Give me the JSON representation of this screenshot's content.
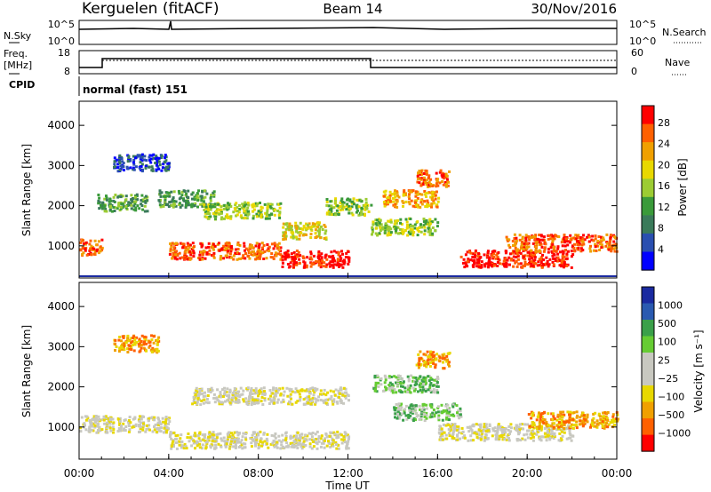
{
  "header": {
    "station": "Kerguelen (fitACF)",
    "beam": "Beam 14",
    "date": "30/Nov/2016"
  },
  "strips": {
    "nsky_label": "N.Sky",
    "nsearch_label": "N.Search",
    "nsky_ticks": [
      "10^5",
      "10^0"
    ],
    "nsky_right_ticks": [
      "10^5",
      "10^0"
    ],
    "freq_label": "Freq.",
    "freq_unit": "[MHz]",
    "freq_ticks": [
      "18",
      "8"
    ],
    "nave_label": "Nave",
    "nave_ticks": [
      "60",
      "0"
    ],
    "cpid_label": "CPID",
    "cpid_value": "normal (fast) 151"
  },
  "colors": {
    "power_scale": [
      "#0000ff",
      "#2a4fb0",
      "#3a7a5a",
      "#3a9a3a",
      "#9ccc33",
      "#e8d800",
      "#f0a000",
      "#ff6000",
      "#ff0000"
    ],
    "velocity_scale": [
      "#ff0000",
      "#ff6000",
      "#f0a000",
      "#e8d800",
      "#c8c8c0",
      "#c8c8c0",
      "#66cc33",
      "#3aa04a",
      "#2a5ab0",
      "#1a2aa0"
    ]
  },
  "chart_data": [
    {
      "type": "heatmap",
      "panel": "power",
      "ylabel": "Slant Range [km]",
      "yticks": [
        "1000",
        "2000",
        "3000",
        "4000"
      ],
      "ylim": [
        200,
        4600
      ],
      "colorbar_label": "Power [dB]",
      "colorbar_ticks": [
        "4",
        "8",
        "12",
        "16",
        "20",
        "24",
        "28"
      ],
      "bands": [
        {
          "t0": 0.0,
          "t1": 1.0,
          "r": 1000,
          "level": 7
        },
        {
          "t0": 0.8,
          "t1": 3.0,
          "r": 2100,
          "level": 3
        },
        {
          "t0": 1.5,
          "t1": 4.0,
          "r": 3100,
          "level": 1
        },
        {
          "t0": 3.5,
          "t1": 6.0,
          "r": 2200,
          "level": 3
        },
        {
          "t0": 4.0,
          "t1": 9.0,
          "r": 900,
          "level": 7
        },
        {
          "t0": 5.5,
          "t1": 9.0,
          "r": 1900,
          "level": 4
        },
        {
          "t0": 9.0,
          "t1": 11.0,
          "r": 1400,
          "level": 5
        },
        {
          "t0": 9.0,
          "t1": 12.0,
          "r": 700,
          "level": 8
        },
        {
          "t0": 11.0,
          "t1": 13.0,
          "r": 2000,
          "level": 4
        },
        {
          "t0": 13.0,
          "t1": 16.0,
          "r": 1500,
          "level": 4
        },
        {
          "t0": 13.5,
          "t1": 16.0,
          "r": 2200,
          "level": 6
        },
        {
          "t0": 15.0,
          "t1": 16.5,
          "r": 2700,
          "level": 7
        },
        {
          "t0": 17.0,
          "t1": 22.0,
          "r": 700,
          "level": 8
        },
        {
          "t0": 19.0,
          "t1": 24.0,
          "r": 1100,
          "level": 7
        }
      ]
    },
    {
      "type": "heatmap",
      "panel": "velocity",
      "xlabel": "Time UT",
      "ylabel": "Slant Range [km]",
      "xticks": [
        "00:00",
        "04:00",
        "08:00",
        "12:00",
        "16:00",
        "20:00",
        "00:00"
      ],
      "yticks": [
        "1000",
        "2000",
        "3000",
        "4000"
      ],
      "ylim": [
        200,
        4600
      ],
      "colorbar_label": "Velocity [m s⁻¹]",
      "colorbar_ticks": [
        "1000",
        "500",
        "100",
        "25",
        "−25",
        "−100",
        "−500",
        "−1000"
      ],
      "bands": [
        {
          "t0": 0.0,
          "t1": 4.0,
          "r": 1100,
          "level": 4
        },
        {
          "t0": 1.5,
          "t1": 3.5,
          "r": 3100,
          "level": 2
        },
        {
          "t0": 4.0,
          "t1": 12.0,
          "r": 700,
          "level": 4
        },
        {
          "t0": 5.0,
          "t1": 12.0,
          "r": 1800,
          "level": 4
        },
        {
          "t0": 13.0,
          "t1": 16.0,
          "r": 2100,
          "level": 6
        },
        {
          "t0": 14.0,
          "t1": 17.0,
          "r": 1400,
          "level": 6
        },
        {
          "t0": 15.0,
          "t1": 16.5,
          "r": 2700,
          "level": 2
        },
        {
          "t0": 16.0,
          "t1": 22.0,
          "r": 900,
          "level": 4
        },
        {
          "t0": 20.0,
          "t1": 24.0,
          "r": 1200,
          "level": 2
        }
      ]
    }
  ]
}
